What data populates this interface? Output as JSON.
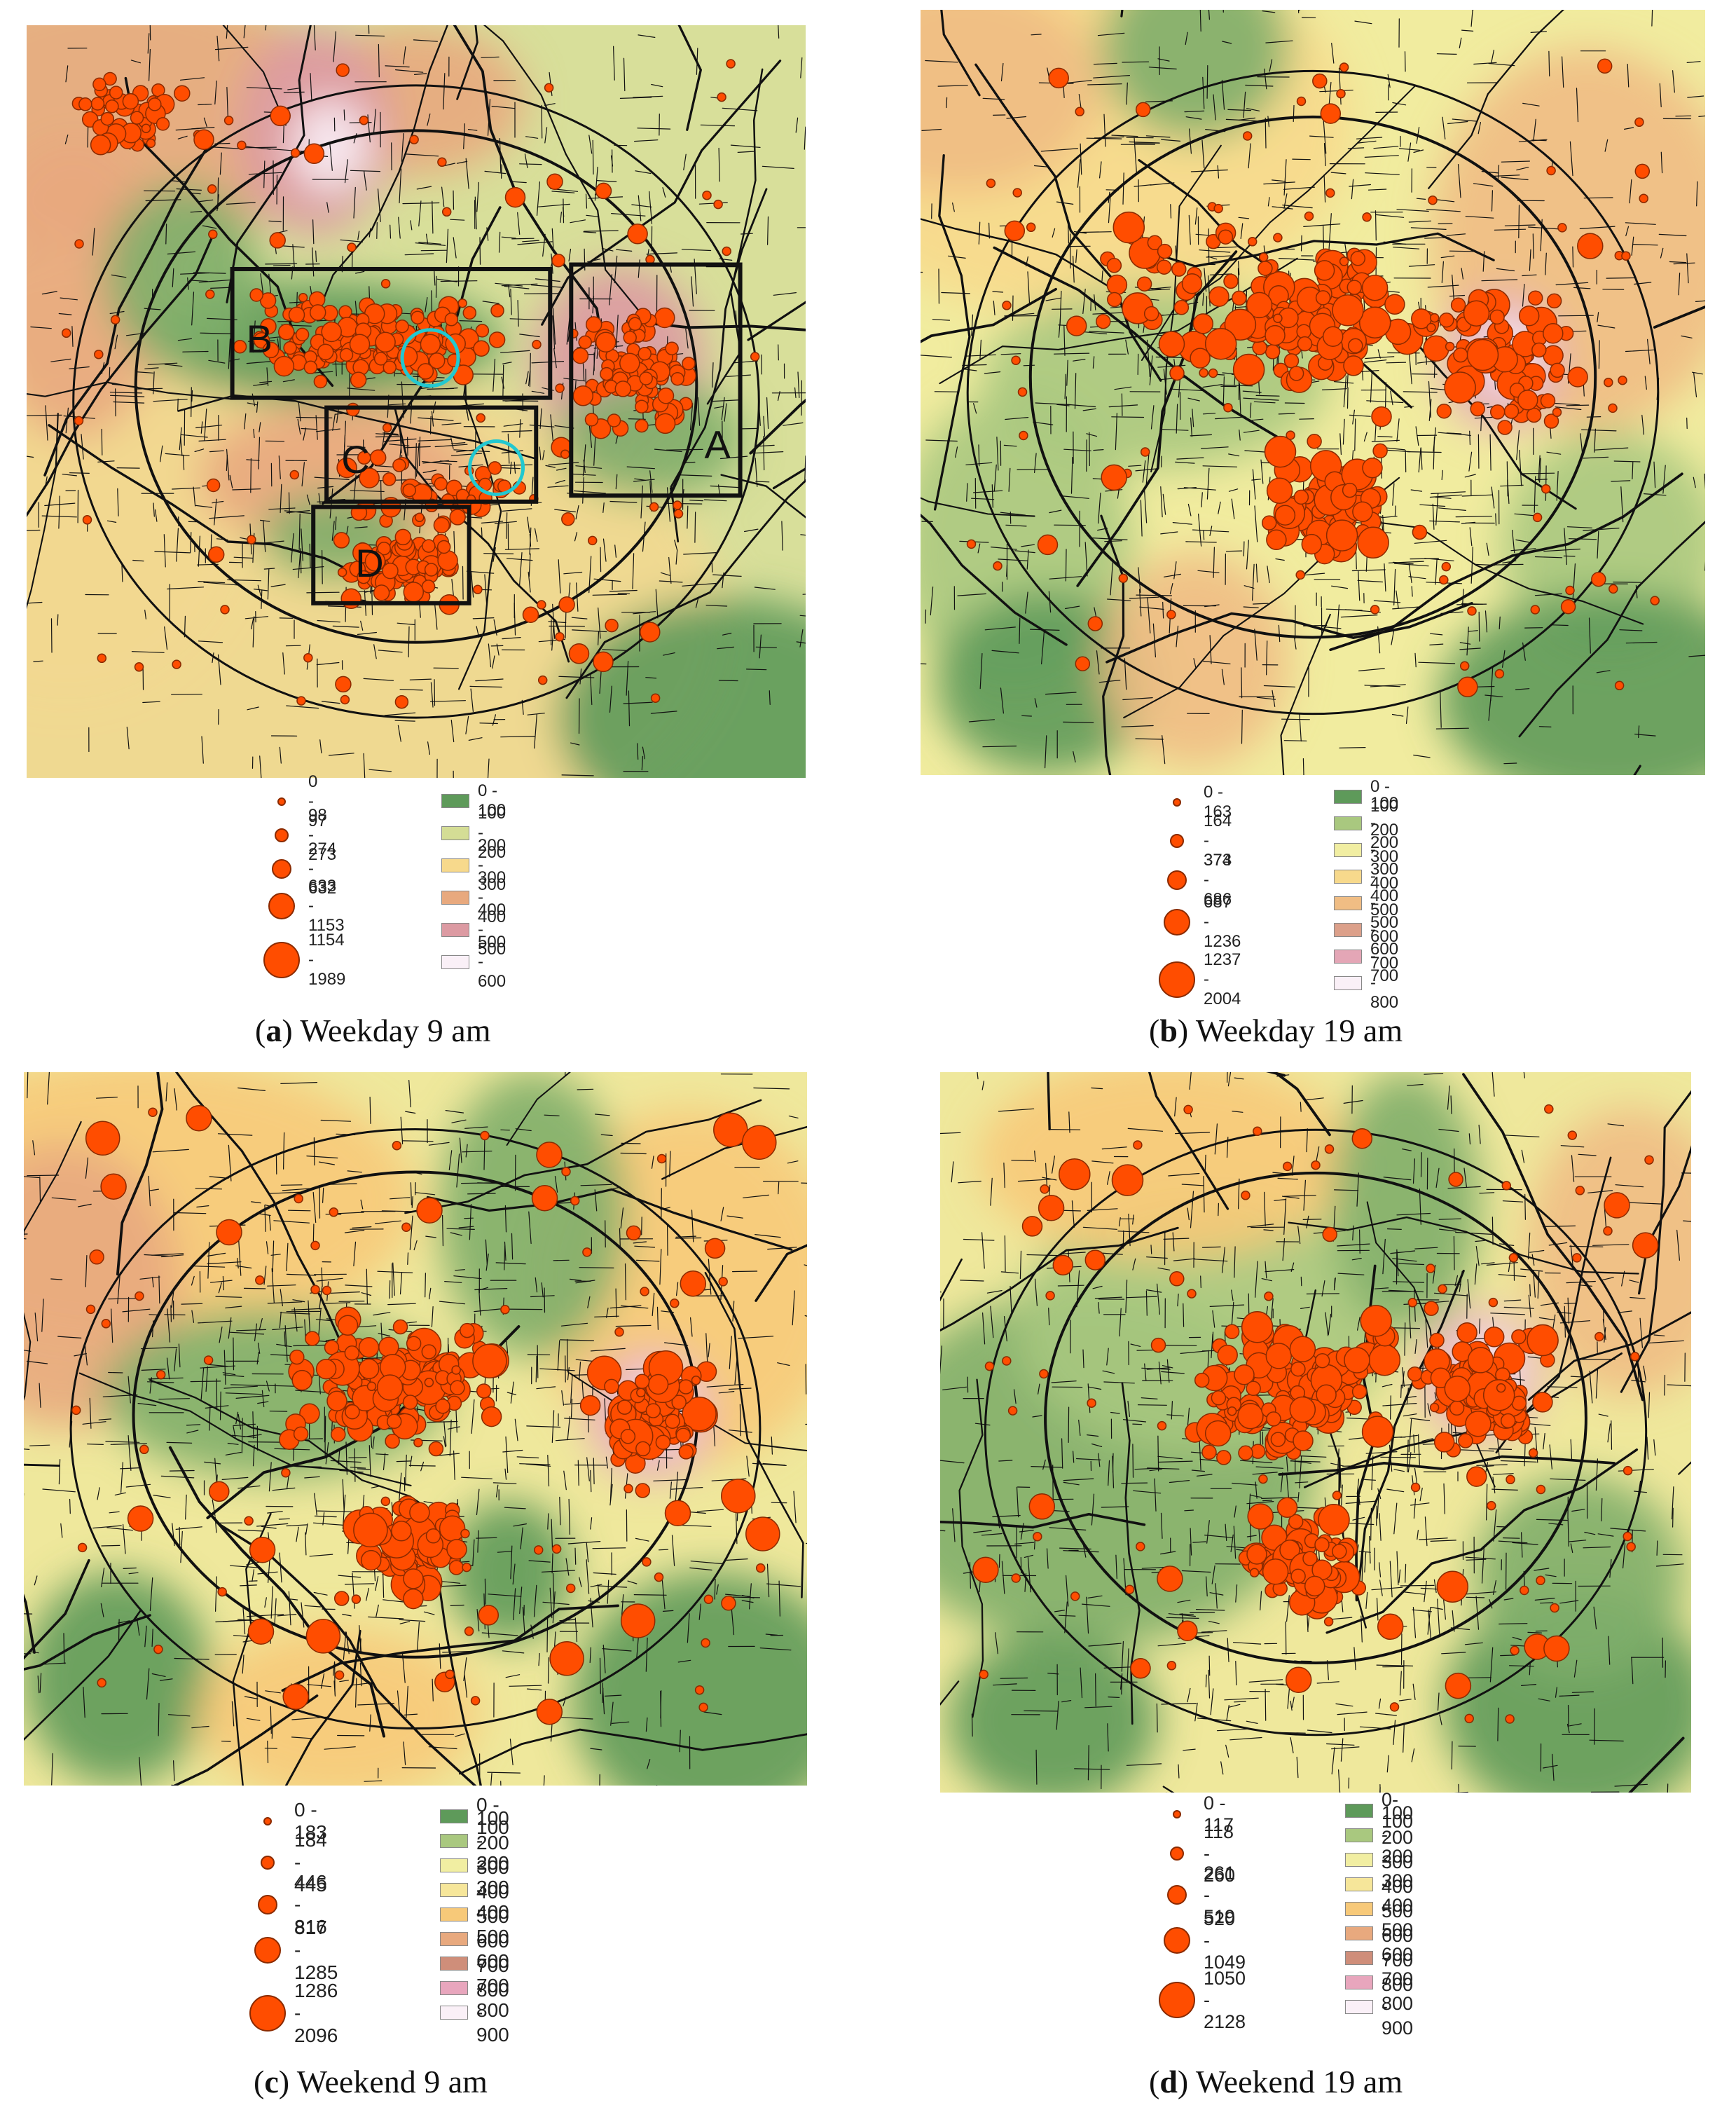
{
  "panels": [
    {
      "id": "a",
      "caption_letter": "a",
      "caption_text": " Weekday 9 am",
      "point_classes": [
        "0 - 97",
        "98 - 273",
        "274 - 632",
        "633 - 1153",
        "1154 - 1989"
      ],
      "surface_classes": [
        "0 - 100",
        "100 - 200",
        "200 - 300",
        "300 - 400",
        "400 - 500",
        "500 - 600"
      ],
      "surface_colors": [
        "#5e9a5a",
        "#d4dd95",
        "#f7d98c",
        "#e8a97e",
        "#dc9aa2",
        "#faf0f7"
      ],
      "zone_labels": [
        "A",
        "B",
        "C",
        "D"
      ]
    },
    {
      "id": "b",
      "caption_letter": "b",
      "caption_text": " Weekday 19 am",
      "point_classes": [
        "0 - 163",
        "164 - 373",
        "374 - 686",
        "687 - 1236",
        "1237 - 2004"
      ],
      "surface_classes": [
        "0 - 100",
        "100 - 200",
        "200 - 300",
        "300 - 400",
        "400 - 500",
        "500 - 600",
        "600 - 700",
        "700 - 800"
      ],
      "surface_colors": [
        "#5e9a5a",
        "#a9c87f",
        "#f1eea2",
        "#f7d98c",
        "#f0bd84",
        "#dca08a",
        "#e4a6b6",
        "#faf0f7"
      ]
    },
    {
      "id": "c",
      "caption_letter": "c",
      "caption_text": " Weekend 9 am",
      "point_classes": [
        "0 - 183",
        "184 - 445",
        "446 - 816",
        "817 - 1285",
        "1286 - 2096"
      ],
      "surface_classes": [
        "0 - 100",
        "100 - 200",
        "200 - 300",
        "300 - 400",
        "400 - 500",
        "500 - 600",
        "600 - 700",
        "700 - 800",
        "800 - 900"
      ],
      "surface_colors": [
        "#5e9a5a",
        "#a9c87f",
        "#f1eea2",
        "#f6e69a",
        "#f7c979",
        "#e8a97e",
        "#cf8e7a",
        "#e8a6bd",
        "#faf0f7"
      ]
    },
    {
      "id": "d",
      "caption_letter": "d",
      "caption_text": " Weekend 19 am",
      "point_classes": [
        "0 - 117",
        "118 - 260",
        "261 - 519",
        "520 - 1049",
        "1050 - 2128"
      ],
      "surface_classes": [
        "0- 100",
        "100 - 200",
        "200 - 300",
        "300 - 400",
        "400 - 500",
        "500 - 600",
        "600 - 700",
        "700 - 800",
        "800 - 900"
      ],
      "surface_colors": [
        "#5e9a5a",
        "#a9c87f",
        "#f1eea2",
        "#f6e69a",
        "#f7c979",
        "#e8a97e",
        "#cf8e7a",
        "#e8a6bd",
        "#faf0f7"
      ]
    }
  ],
  "colors": {
    "point_fill": "#ff4d00",
    "point_stroke": "#8a2a00",
    "roads": "#111111",
    "zone_box": "#111111",
    "highlight_circle": "#22c8d0"
  }
}
